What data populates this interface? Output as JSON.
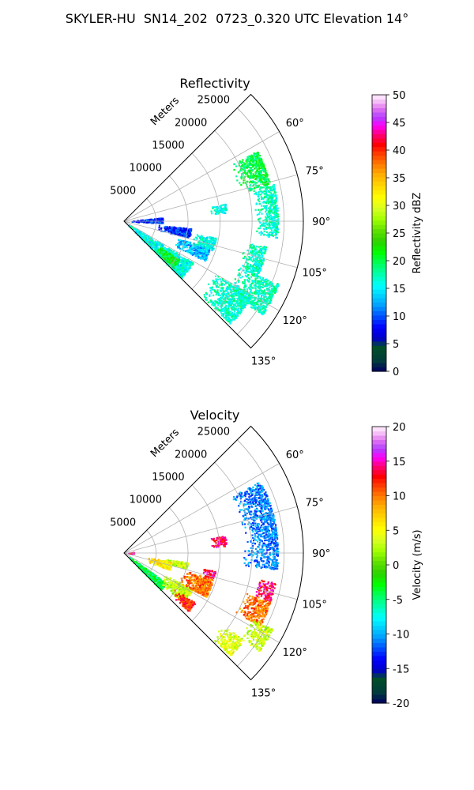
{
  "figure": {
    "suptitle": "SKYLER-HU  SN14_202  0723_0.320 UTC Elevation 14°"
  },
  "chart_data": [
    {
      "type": "polar-ppi",
      "title": "Reflectivity",
      "radial_label": "Meters",
      "range_ticks": [
        5000,
        10000,
        15000,
        20000,
        25000
      ],
      "rmax": 28000,
      "azimuth_ticks": [
        "60°",
        "75°",
        "90°",
        "105°",
        "120°",
        "135°"
      ],
      "azimuth_values": [
        60,
        75,
        90,
        105,
        120,
        135
      ],
      "sector": [
        45,
        135
      ],
      "grid": true,
      "colorbar": {
        "label": "Reflectivity dBZ",
        "min": 0,
        "max": 50,
        "ticks": [
          0,
          5,
          10,
          15,
          20,
          25,
          30,
          35,
          40,
          45,
          50
        ]
      },
      "echo_regions": [
        {
          "name": "",
          "az": [
            121,
            135
          ],
          "r": [
            500,
            12500
          ],
          "value": 16
        },
        {
          "name": "",
          "az": [
            107,
            116
          ],
          "r": [
            8500,
            14000
          ],
          "value": 13
        },
        {
          "name": "",
          "az": [
            100,
            108
          ],
          "r": [
            11000,
            14500
          ],
          "value": 16
        },
        {
          "name": "",
          "az": [
            125,
            133
          ],
          "r": [
            6500,
            10500
          ],
          "value": 21
        },
        {
          "name": "",
          "az": [
            62,
            76
          ],
          "r": [
            18500,
            23500
          ],
          "value": 20
        },
        {
          "name": "",
          "az": [
            76,
            96
          ],
          "r": [
            20500,
            24000
          ],
          "value": 17
        },
        {
          "name": "",
          "az": [
            80,
            85
          ],
          "r": [
            13500,
            16000
          ],
          "value": 16
        },
        {
          "name": "",
          "az": [
            100,
            112
          ],
          "r": [
            19000,
            22500
          ],
          "value": 17
        },
        {
          "name": "",
          "az": [
            112,
            124
          ],
          "r": [
            19000,
            26000
          ],
          "value": 17
        },
        {
          "name": "",
          "az": [
            120,
            134
          ],
          "r": [
            16000,
            23000
          ],
          "value": 17
        },
        {
          "name": "",
          "az": [
            96,
            104
          ],
          "r": [
            5000,
            10500
          ],
          "value": 9
        },
        {
          "name": "",
          "az": [
            84,
            92
          ],
          "r": [
            1000,
            6000
          ],
          "value": 9
        }
      ]
    },
    {
      "type": "polar-ppi",
      "title": "Velocity",
      "radial_label": "Meters",
      "range_ticks": [
        5000,
        10000,
        15000,
        20000,
        25000
      ],
      "rmax": 28000,
      "azimuth_ticks": [
        "60°",
        "75°",
        "90°",
        "105°",
        "120°",
        "135°"
      ],
      "azimuth_values": [
        60,
        75,
        90,
        105,
        120,
        135
      ],
      "sector": [
        45,
        135
      ],
      "grid": true,
      "colorbar": {
        "label": "Velocity (m/s)",
        "min": -20,
        "max": 20,
        "ticks": [
          -20,
          -15,
          -10,
          -5,
          0,
          5,
          10,
          15,
          20
        ]
      },
      "echo_regions": [
        {
          "name": "",
          "az": [
            125,
            135
          ],
          "r": [
            500,
            8000
          ],
          "value": -4
        },
        {
          "name": "",
          "az": [
            118,
            130
          ],
          "r": [
            7000,
            12000
          ],
          "value": 3
        },
        {
          "name": "",
          "az": [
            106,
            118
          ],
          "r": [
            9500,
            14500
          ],
          "value": 10
        },
        {
          "name": "",
          "az": [
            101,
            106
          ],
          "r": [
            12500,
            14500
          ],
          "value": 14
        },
        {
          "name": "",
          "az": [
            125,
            132
          ],
          "r": [
            9500,
            13500
          ],
          "value": 12
        },
        {
          "name": "",
          "az": [
            62,
            96
          ],
          "r": [
            18500,
            24000
          ],
          "value": -11
        },
        {
          "name": "",
          "az": [
            80,
            86
          ],
          "r": [
            13500,
            16000
          ],
          "value": 14
        },
        {
          "name": "",
          "az": [
            101,
            108
          ],
          "r": [
            21000,
            24000
          ],
          "value": 14
        },
        {
          "name": "",
          "az": [
            108,
            118
          ],
          "r": [
            19500,
            24000
          ],
          "value": 10
        },
        {
          "name": "",
          "az": [
            117,
            126
          ],
          "r": [
            22000,
            26000
          ],
          "value": 3
        },
        {
          "name": "",
          "az": [
            126,
            134
          ],
          "r": [
            19000,
            23000
          ],
          "value": 4
        },
        {
          "name": "",
          "az": [
            98,
            104
          ],
          "r": [
            6000,
            10000
          ],
          "value": 3
        },
        {
          "name": "",
          "az": [
            100,
            110
          ],
          "r": [
            3500,
            7500
          ],
          "value": 6
        },
        {
          "name": "",
          "az": [
            84,
            90
          ],
          "r": [
            500,
            1500
          ],
          "value": 14
        }
      ]
    }
  ]
}
